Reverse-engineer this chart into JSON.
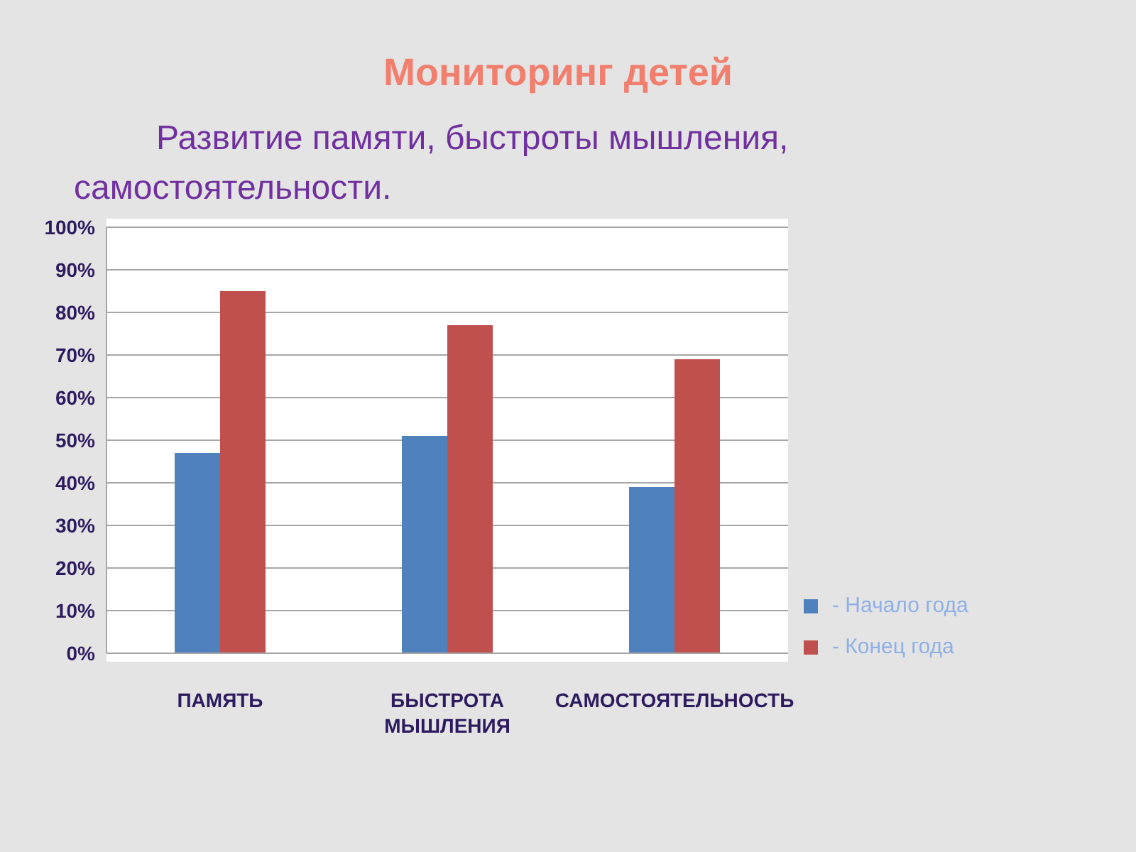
{
  "chart_data": {
    "type": "bar",
    "title": "Мониторинг детей",
    "subtitle": "Развитие памяти, быстроты мышления, самостоятельности.",
    "categories": [
      "ПАМЯТЬ",
      "БЫСТРОТА МЫШЛЕНИЯ",
      "САМОСТОЯТЕЛЬНОСТЬ"
    ],
    "series": [
      {
        "name": "- Начало года",
        "color": "#4f81bd",
        "values": [
          47,
          51,
          39
        ]
      },
      {
        "name": "- Конец года",
        "color": "#c0504d",
        "values": [
          85,
          77,
          69
        ]
      }
    ],
    "ylim": [
      0,
      100
    ],
    "yticks": [
      {
        "value": 0,
        "label": "0%"
      },
      {
        "value": 10,
        "label": "10%"
      },
      {
        "value": 20,
        "label": "20%"
      },
      {
        "value": 30,
        "label": "30%"
      },
      {
        "value": 40,
        "label": "40%"
      },
      {
        "value": 50,
        "label": "50%"
      },
      {
        "value": 60,
        "label": "60%"
      },
      {
        "value": 70,
        "label": "70%"
      },
      {
        "value": 80,
        "label": "80%"
      },
      {
        "value": 90,
        "label": "90%"
      },
      {
        "value": 100,
        "label": "100%"
      }
    ],
    "grid": "y",
    "legend": "bottom right"
  }
}
